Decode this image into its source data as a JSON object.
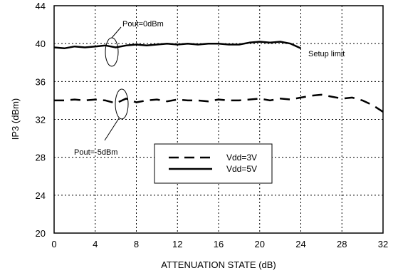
{
  "chart_data": {
    "type": "line",
    "title": "",
    "xlabel": "ATTENUATION STATE (dB)",
    "ylabel": "IP3 (dBm)",
    "xlim": [
      0,
      32
    ],
    "ylim": [
      20,
      44
    ],
    "x_ticks": [
      0,
      4,
      8,
      12,
      16,
      20,
      24,
      28,
      32
    ],
    "y_ticks": [
      20,
      24,
      28,
      32,
      36,
      40,
      44
    ],
    "grid": true,
    "grid_style": "dotted",
    "legend_position": "center",
    "series": [
      {
        "name": "Vdd=3V",
        "line_style": "dashed",
        "color": "#000000",
        "x": [
          0,
          1,
          2,
          3,
          4,
          5,
          6,
          7,
          8,
          9,
          10,
          11,
          12,
          13,
          14,
          15,
          16,
          17,
          18,
          19,
          20,
          21,
          22,
          23,
          24,
          25,
          26,
          27,
          28,
          29,
          30,
          31,
          32
        ],
        "y": [
          34.0,
          34.0,
          34.1,
          34.0,
          34.1,
          34.0,
          33.7,
          34.2,
          33.8,
          34.0,
          34.1,
          33.9,
          34.1,
          34.0,
          34.0,
          33.9,
          34.1,
          34.0,
          34.0,
          34.1,
          34.2,
          34.0,
          34.2,
          34.1,
          34.3,
          34.5,
          34.6,
          34.4,
          34.2,
          34.3,
          34.0,
          33.5,
          32.8
        ]
      },
      {
        "name": "Vdd=5V",
        "line_style": "solid",
        "color": "#000000",
        "x": [
          0,
          1,
          2,
          3,
          4,
          5,
          6,
          7,
          8,
          9,
          10,
          11,
          12,
          13,
          14,
          15,
          16,
          17,
          18,
          19,
          20,
          21,
          22,
          23,
          24
        ],
        "y": [
          39.6,
          39.5,
          39.7,
          39.6,
          39.7,
          39.8,
          39.6,
          39.8,
          39.9,
          39.8,
          39.9,
          40.0,
          39.9,
          40.0,
          39.9,
          40.0,
          40.0,
          39.9,
          39.9,
          40.1,
          40.2,
          40.1,
          40.2,
          40.0,
          39.5
        ]
      }
    ],
    "annotations": {
      "pout0": "Pout=0dBm",
      "pout5": "Pout=-5dBm",
      "setup": "Setup limit"
    }
  }
}
